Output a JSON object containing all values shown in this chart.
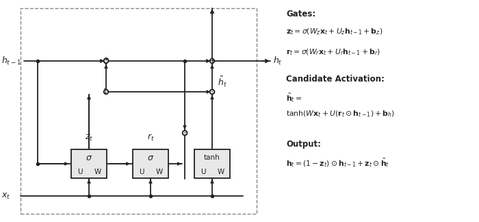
{
  "fig_width": 7.0,
  "fig_height": 3.24,
  "dpi": 100,
  "bg_color": "#ffffff",
  "dc": "#222222",
  "lw": 1.3,
  "r_circ": 0.033,
  "annotations": {
    "gates_title": "Gates:",
    "gates_eq1": "$\\mathbf{z}_t = \\sigma(W_z\\mathbf{x}_t + U_z\\mathbf{h}_{t-1} + \\mathbf{b}_z)$",
    "gates_eq2": "$\\mathbf{r}_t = \\sigma(W_r\\mathbf{x}_t + U_r\\mathbf{h}_{t-1} + \\mathbf{b}_r)$",
    "cand_title": "Candidate Activation:",
    "cand_eq1": "$\\tilde{\\mathbf{h}}_t =$",
    "cand_eq2": "$\\tanh(W\\mathbf{x}_t + U(\\mathbf{r}_t \\odot \\mathbf{h}_{t-1}) + \\mathbf{b}_h)$",
    "out_title": "Output:",
    "out_eq": "$\\mathbf{h}_t = (1 - \\mathbf{z}_t) \\odot \\mathbf{h}_{t-1} + \\mathbf{z}_t \\odot \\tilde{\\mathbf{h}}_t$"
  }
}
